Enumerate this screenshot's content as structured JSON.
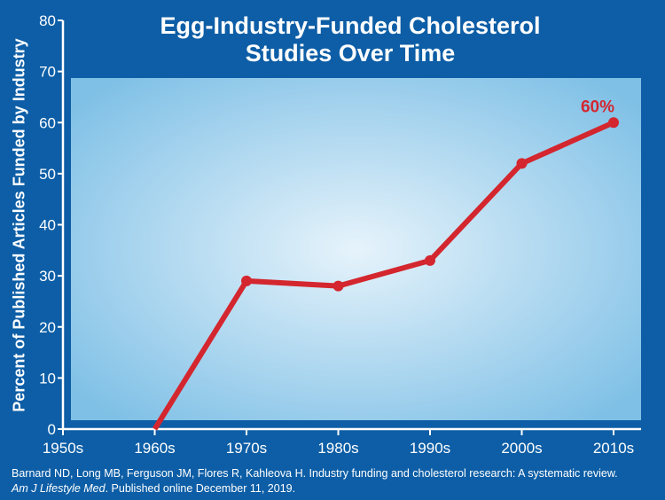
{
  "chart_data": {
    "type": "line",
    "title_line1": "Egg-Industry-Funded Cholesterol",
    "title_line2": "Studies Over Time",
    "ylabel": "Percent of Published Articles Funded by Industry",
    "xlabel": "",
    "categories": [
      "1950s",
      "1960s",
      "1970s",
      "1980s",
      "1990s",
      "2000s",
      "2010s"
    ],
    "series": [
      {
        "values": [
          null,
          0,
          29,
          28,
          33,
          52,
          60
        ]
      }
    ],
    "ylim": [
      0,
      80
    ],
    "yticks": [
      0,
      10,
      20,
      30,
      40,
      50,
      60,
      70,
      80
    ],
    "annotation": "60%",
    "grid": false,
    "colors": {
      "background": "#0d5ea6",
      "panel": "#a8d4ee",
      "line": "#d4262e",
      "axis": "#ffffff"
    }
  },
  "citation": {
    "line1": "Barnard ND, Long MB, Ferguson JM, Flores R, Kahleova H. Industry funding and cholesterol research: A systematic review.",
    "journal": "Am J Lifestyle Med",
    "line2_rest": ". Published online December 11, 2019."
  }
}
